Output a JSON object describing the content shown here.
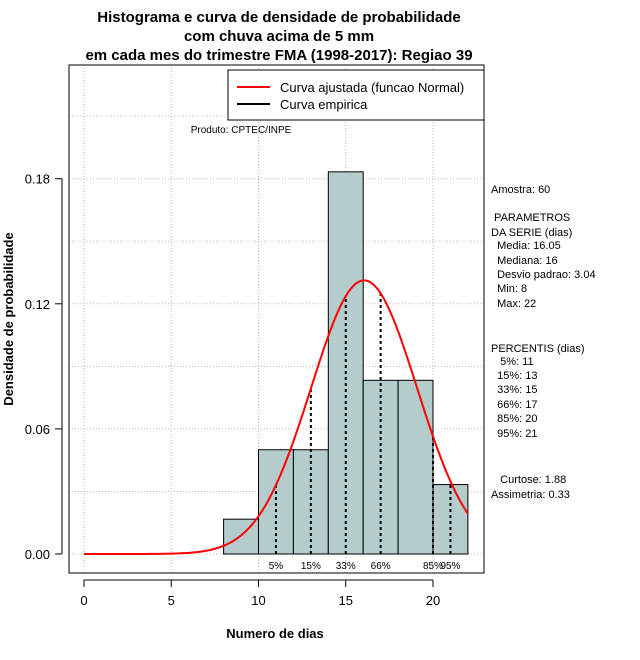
{
  "chart_data": {
    "type": "bar",
    "title_lines": [
      "Histograma e curva de densidade de probabilidade",
      "com chuva acima de 5 mm",
      "em cada mes do trimestre FMA (1998-2017): Regiao 39"
    ],
    "xlabel": "Numero de dias",
    "ylabel": "Densidade de probabilidade",
    "xlim": [
      0,
      22
    ],
    "ylim": [
      0,
      0.18
    ],
    "x_ticks": [
      0,
      5,
      10,
      15,
      20
    ],
    "x_tick_labels": [
      "0",
      "5",
      "10",
      "15",
      "20"
    ],
    "y_ticks": [
      0.0,
      0.06,
      0.12,
      0.18
    ],
    "y_tick_labels": [
      "0.00",
      "0.06",
      "0.12",
      "0.18"
    ],
    "bins": [
      {
        "from": 8,
        "to": 10,
        "density": 0.0167
      },
      {
        "from": 10,
        "to": 12,
        "density": 0.05
      },
      {
        "from": 12,
        "to": 14,
        "density": 0.05
      },
      {
        "from": 14,
        "to": 16,
        "density": 0.1833
      },
      {
        "from": 16,
        "to": 18,
        "density": 0.0833
      },
      {
        "from": 18,
        "to": 20,
        "density": 0.0833
      },
      {
        "from": 20,
        "to": 22,
        "density": 0.0333
      }
    ],
    "normal_fit": {
      "mean": 16.05,
      "sd": 3.04
    },
    "percentiles": [
      {
        "label": "5%",
        "x": 11
      },
      {
        "label": "15%",
        "x": 13
      },
      {
        "label": "33%",
        "x": 15
      },
      {
        "label": "66%",
        "x": 17
      },
      {
        "label": "85%",
        "x": 20
      },
      {
        "label": "95%",
        "x": 21
      }
    ],
    "legend": [
      {
        "label": "Curva ajustada (funcao Normal)",
        "color": "#ff0000"
      },
      {
        "label": "Curva empirica",
        "color": "#000000"
      }
    ],
    "legend_position": "top-right",
    "product_label": "Produto: CPTEC/INPE",
    "grid": true,
    "colors": {
      "bar_fill": "#b4cccb",
      "curve": "#ff0000",
      "grid": "#bbbbbb"
    }
  },
  "side_panel": {
    "lines": [
      "Amostra: 60",
      " PARAMETROS",
      "DA SERIE (dias)",
      "  Media: 16.05",
      "  Mediana: 16",
      "  Desvio padrao: 3.04",
      "  Min: 8",
      "  Max: 22",
      "PERCENTIS (dias)",
      "   5%: 11",
      "  15%: 13",
      "  33%: 15",
      "  66%: 17",
      "  85%: 20",
      "  95%: 21",
      "   Curtose: 1.88",
      "Assimetria: 0.33"
    ]
  }
}
